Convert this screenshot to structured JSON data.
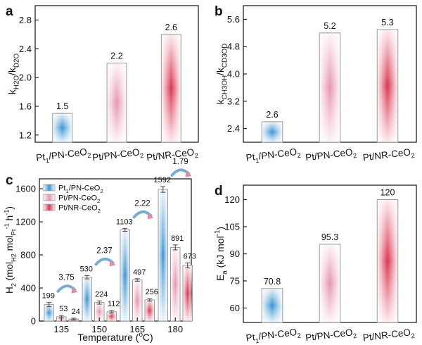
{
  "colors": {
    "blue": "#2f8fd0",
    "pink": "#e58aa6",
    "red": "#d92b47",
    "axis": "#222222",
    "bar_edge": "#9a9a9a"
  },
  "chart_data": [
    {
      "panel": "a",
      "type": "bar",
      "categories": [
        "Pt1/PN-CeO2",
        "Pt/PN-CeO2",
        "Pt/NR-CeO2"
      ],
      "values": [
        1.5,
        2.2,
        2.6
      ],
      "value_labels": [
        "1.5",
        "2.2",
        "2.6"
      ],
      "ylabel": "kH2O/kD2O",
      "ylim": [
        1.1,
        3.0
      ],
      "yticks": [
        "1.2",
        "1.6",
        "2.0",
        "2.4",
        "2.8"
      ]
    },
    {
      "panel": "b",
      "type": "bar",
      "categories": [
        "Pt1/PN-CeO2",
        "Pt/PN-CeO2",
        "Pt/NR-CeO2"
      ],
      "values": [
        2.6,
        5.2,
        5.3
      ],
      "value_labels": [
        "2.6",
        "5.2",
        "5.3"
      ],
      "ylabel": "kCH3OH/kCD3OD",
      "ylim": [
        2.0,
        6.0
      ],
      "yticks": [
        "2.4",
        "3.2",
        "4.0",
        "4.8",
        "5.6"
      ]
    },
    {
      "panel": "c",
      "type": "bar",
      "categories": [
        "135",
        "150",
        "165",
        "180"
      ],
      "series": [
        {
          "name": "Pt1/PN-CeO2",
          "values": [
            199,
            530,
            1103,
            1592
          ],
          "errors": [
            25,
            20,
            18,
            35
          ]
        },
        {
          "name": "Pt/PN-CeO2",
          "values": [
            53,
            224,
            497,
            891
          ],
          "errors": [
            15,
            20,
            15,
            30
          ]
        },
        {
          "name": "Pt/NR-CeO2",
          "values": [
            24,
            112,
            256,
            673
          ],
          "errors": [
            10,
            15,
            15,
            30
          ]
        }
      ],
      "ratio_labels": [
        "3.75",
        "2.37",
        "2.22",
        "1.79"
      ],
      "xlabel": "Temperature (oC)",
      "ylabel": "H2 (molH2 molPt-1 h-1)",
      "ylim": [
        0,
        1720
      ],
      "yticks": [
        "0",
        "400",
        "800",
        "1200",
        "1600"
      ]
    },
    {
      "panel": "d",
      "type": "bar",
      "categories": [
        "Pt1/PN-CeO2",
        "Pt/PN-CeO2",
        "Pt/NR-CeO2"
      ],
      "values": [
        70.8,
        95.3,
        120
      ],
      "value_labels": [
        "70.8",
        "95.3",
        "120"
      ],
      "ylabel": "Ea (kJ mol-1)",
      "ylim": [
        52,
        128
      ],
      "yticks": [
        "60",
        "75",
        "90",
        "105",
        "120"
      ]
    }
  ]
}
